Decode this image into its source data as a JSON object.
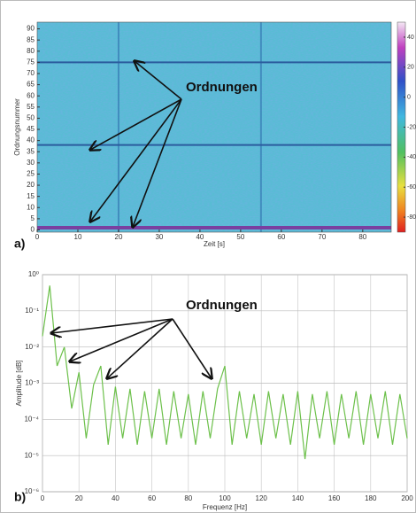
{
  "chart_data": [
    {
      "type": "heatmap",
      "panel_label": "a)",
      "x_label": "Zeit [s]",
      "y_label": "Ordnungsnummer",
      "annotation": "Ordnungen",
      "xlim": [
        0,
        87
      ],
      "xticks": [
        0,
        10,
        20,
        30,
        40,
        50,
        60,
        70,
        80
      ],
      "ylim": [
        -1,
        93
      ],
      "yticks": [
        0,
        5,
        10,
        15,
        20,
        25,
        30,
        35,
        40,
        45,
        50,
        55,
        60,
        65,
        70,
        75,
        80,
        85,
        90
      ],
      "order_lines": [
        1,
        38,
        75
      ],
      "order_color": "#2b5c9e",
      "base_color": "#7a3fa0",
      "time_lines": [
        20,
        55
      ],
      "time_color": "#2f6fae",
      "clim": [
        -90,
        50
      ],
      "cticks": [
        40,
        20,
        0,
        -20,
        -40,
        -60,
        -80
      ]
    },
    {
      "type": "line",
      "panel_label": "b)",
      "x_label": "Frequenz [Hz]",
      "y_label": "Amplitude [dB]",
      "annotation": "Ordnungen",
      "log_y": true,
      "grid": true,
      "xlim": [
        0,
        200
      ],
      "xticks": [
        0,
        20,
        40,
        60,
        80,
        100,
        120,
        140,
        160,
        180,
        200
      ],
      "ylim": [
        1e-06,
        1
      ],
      "yticks": [
        {
          "value": 1,
          "label": "10⁰"
        },
        {
          "value": 0.1,
          "label": "10⁻¹"
        },
        {
          "value": 0.01,
          "label": "10⁻²"
        },
        {
          "value": 0.001,
          "label": "10⁻³"
        },
        {
          "value": 0.0001,
          "label": "10⁻⁴"
        },
        {
          "value": 1e-05,
          "label": "10⁻⁵"
        },
        {
          "value": 1e-06,
          "label": "10⁻⁶"
        }
      ],
      "color": "#6cc04a",
      "x": [
        0,
        4,
        8,
        12,
        16,
        20,
        24,
        28,
        32,
        36,
        40,
        44,
        48,
        52,
        56,
        60,
        64,
        68,
        72,
        76,
        80,
        84,
        88,
        92,
        96,
        100,
        104,
        108,
        112,
        116,
        120,
        124,
        128,
        132,
        136,
        140,
        144,
        148,
        152,
        156,
        160,
        164,
        168,
        172,
        176,
        180,
        184,
        188,
        192,
        196,
        200
      ],
      "values": [
        0.02,
        0.5,
        0.003,
        0.01,
        0.0002,
        0.002,
        3e-05,
        0.0009,
        0.003,
        2e-05,
        0.0008,
        3e-05,
        0.0007,
        2e-05,
        0.0006,
        3e-05,
        0.0007,
        2e-05,
        0.0006,
        3e-05,
        0.0005,
        2e-05,
        0.0006,
        3e-05,
        0.0007,
        0.003,
        2e-05,
        0.0006,
        3e-05,
        0.0005,
        2e-05,
        0.0006,
        3e-05,
        0.0005,
        2e-05,
        0.0006,
        8e-06,
        0.0005,
        3e-05,
        0.0006,
        2e-05,
        0.0005,
        3e-05,
        0.0006,
        2e-05,
        0.0005,
        3e-05,
        0.0006,
        2e-05,
        0.0005,
        3e-05
      ]
    }
  ]
}
